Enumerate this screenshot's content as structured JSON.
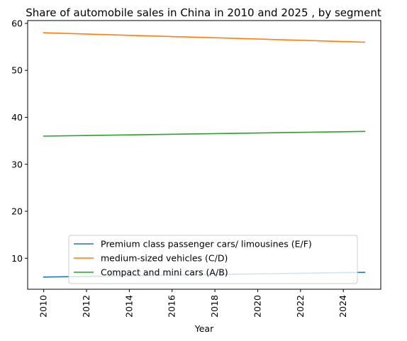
{
  "chart_data": {
    "type": "line",
    "title": "Share of automobile sales in China in 2010 and 2025 , by segment",
    "xlabel": "Year",
    "ylabel": "",
    "x": [
      2010,
      2025
    ],
    "xlim": [
      2009.25,
      2025.75
    ],
    "ylim": [
      3.4,
      60.6
    ],
    "xticks": [
      2010,
      2012,
      2014,
      2016,
      2018,
      2020,
      2022,
      2024
    ],
    "yticks": [
      10,
      20,
      30,
      40,
      50,
      60
    ],
    "grid": false,
    "legend_position": "lower center",
    "series": [
      {
        "name": "Premium class passenger cars/ limousines (E/F)",
        "color": "#1f77b4",
        "values": [
          6,
          7
        ]
      },
      {
        "name": "medium-sized vehicles (C/D)",
        "color": "#ff7f0e",
        "values": [
          58,
          56
        ]
      },
      {
        "name": "Compact and mini cars (A/B)",
        "color": "#2ca02c",
        "values": [
          36,
          37
        ]
      }
    ]
  }
}
